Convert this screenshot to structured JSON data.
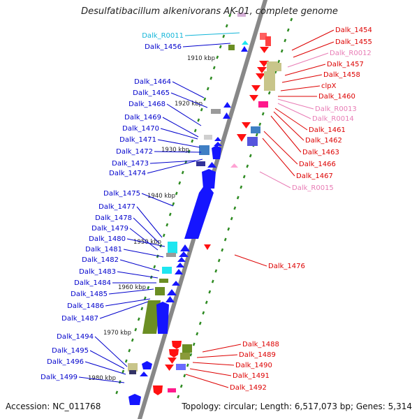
{
  "title": "Desulfatibacillum alkenivorans AK-01, complete genome",
  "footer": {
    "accession": "Accession: NC_011768",
    "summary": "Topology: circular; Length: 6,517,073 bp; Genes: 5,314"
  },
  "colors": {
    "label_left": "#0000cc",
    "label_left_rna": "#11b5d8",
    "label_right": "#dd0000",
    "label_right_rna": "#e87cb5",
    "backbone": "#888888",
    "tick": "#2e8b22"
  },
  "scale_labels": [
    "1910 kbp",
    "1920 kbp",
    "1930 kbp",
    "1940 kbp",
    "1950 kbp",
    "1960 kbp",
    "1970 kbp",
    "1980 kbp"
  ],
  "left_labels": [
    {
      "text": "Dalk_R0011",
      "type": "rna"
    },
    {
      "text": "Dalk_1456",
      "type": "gene"
    },
    {
      "text": "Dalk_1464",
      "type": "gene"
    },
    {
      "text": "Dalk_1465",
      "type": "gene"
    },
    {
      "text": "Dalk_1468",
      "type": "gene"
    },
    {
      "text": "Dalk_1469",
      "type": "gene"
    },
    {
      "text": "Dalk_1470",
      "type": "gene"
    },
    {
      "text": "Dalk_1471",
      "type": "gene"
    },
    {
      "text": "Dalk_1472",
      "type": "gene"
    },
    {
      "text": "Dalk_1473",
      "type": "gene"
    },
    {
      "text": "Dalk_1474",
      "type": "gene"
    },
    {
      "text": "Dalk_1475",
      "type": "gene"
    },
    {
      "text": "Dalk_1477",
      "type": "gene"
    },
    {
      "text": "Dalk_1478",
      "type": "gene"
    },
    {
      "text": "Dalk_1479",
      "type": "gene"
    },
    {
      "text": "Dalk_1480",
      "type": "gene"
    },
    {
      "text": "Dalk_1481",
      "type": "gene"
    },
    {
      "text": "Dalk_1482",
      "type": "gene"
    },
    {
      "text": "Dalk_1483",
      "type": "gene"
    },
    {
      "text": "Dalk_1484",
      "type": "gene"
    },
    {
      "text": "Dalk_1485",
      "type": "gene"
    },
    {
      "text": "Dalk_1486",
      "type": "gene"
    },
    {
      "text": "Dalk_1487",
      "type": "gene"
    },
    {
      "text": "Dalk_1494",
      "type": "gene"
    },
    {
      "text": "Dalk_1495",
      "type": "gene"
    },
    {
      "text": "Dalk_1496",
      "type": "gene"
    },
    {
      "text": "Dalk_1499",
      "type": "gene"
    }
  ],
  "right_labels": [
    {
      "text": "Dalk_1454",
      "type": "gene"
    },
    {
      "text": "Dalk_1455",
      "type": "gene"
    },
    {
      "text": "Dalk_R0012",
      "type": "rna"
    },
    {
      "text": "Dalk_1457",
      "type": "gene"
    },
    {
      "text": "Dalk_1458",
      "type": "gene"
    },
    {
      "text": "clpX",
      "type": "gene"
    },
    {
      "text": "Dalk_1460",
      "type": "gene"
    },
    {
      "text": "Dalk_R0013",
      "type": "rna"
    },
    {
      "text": "Dalk_R0014",
      "type": "rna"
    },
    {
      "text": "Dalk_1461",
      "type": "gene"
    },
    {
      "text": "Dalk_1462",
      "type": "gene"
    },
    {
      "text": "Dalk_1463",
      "type": "gene"
    },
    {
      "text": "Dalk_1466",
      "type": "gene"
    },
    {
      "text": "Dalk_1467",
      "type": "gene"
    },
    {
      "text": "Dalk_R0015",
      "type": "rna"
    },
    {
      "text": "Dalk_1476",
      "type": "gene"
    },
    {
      "text": "Dalk_1488",
      "type": "gene"
    },
    {
      "text": "Dalk_1489",
      "type": "gene"
    },
    {
      "text": "Dalk_1490",
      "type": "gene"
    },
    {
      "text": "Dalk_1491",
      "type": "gene"
    },
    {
      "text": "Dalk_1492",
      "type": "gene"
    }
  ]
}
